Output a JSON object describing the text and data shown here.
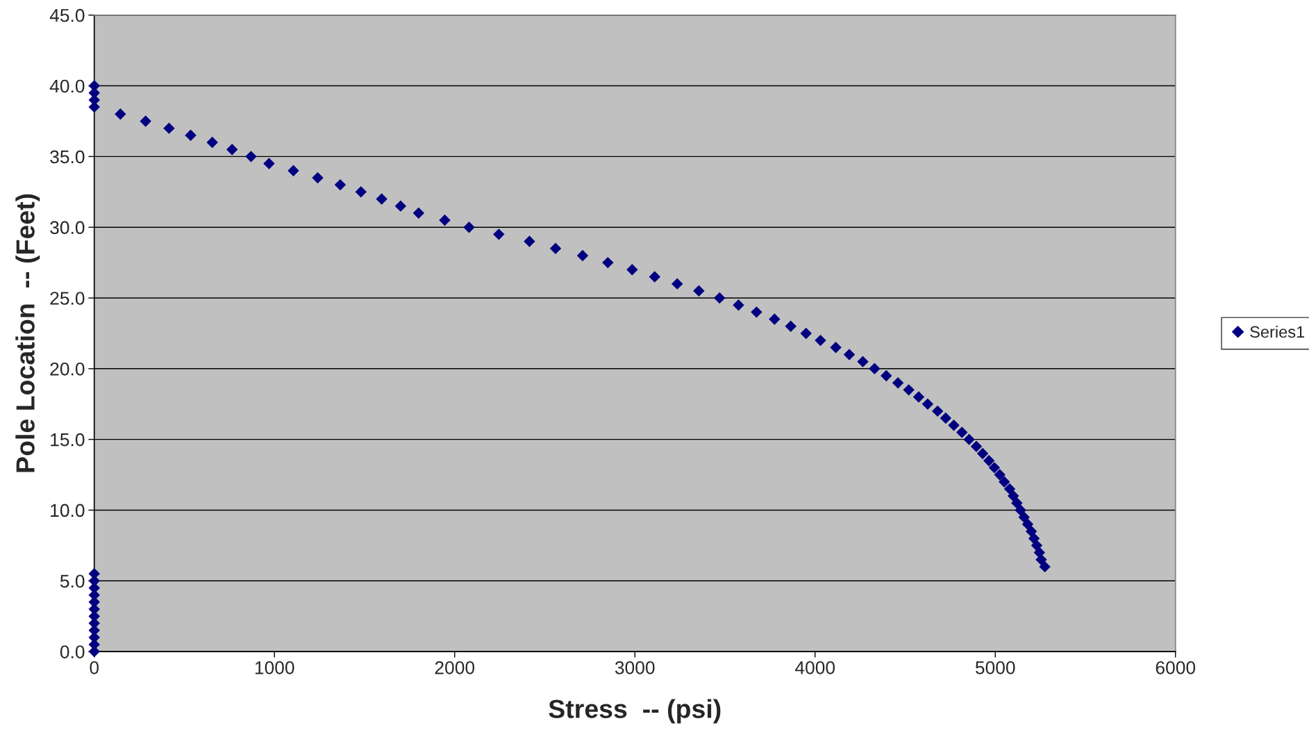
{
  "chart_data": {
    "type": "scatter",
    "xlabel": "Stress  -- (psi)",
    "ylabel": "Pole Location  -- (Feet)",
    "series": [
      {
        "name": "Series1",
        "color": "#000080",
        "x": [
          0,
          0,
          0,
          0,
          0,
          0,
          0,
          0,
          0,
          0,
          0,
          0,
          5275,
          5255,
          5245,
          5230,
          5215,
          5200,
          5180,
          5160,
          5140,
          5120,
          5100,
          5080,
          5050,
          5025,
          4995,
          4965,
          4930,
          4895,
          4855,
          4815,
          4770,
          4725,
          4680,
          4625,
          4575,
          4520,
          4460,
          4395,
          4330,
          4265,
          4190,
          4115,
          4030,
          3950,
          3865,
          3775,
          3675,
          3575,
          3470,
          3355,
          3235,
          3110,
          2985,
          2850,
          2710,
          2560,
          2415,
          2245,
          2080,
          1945,
          1800,
          1700,
          1595,
          1480,
          1365,
          1240,
          1105,
          970,
          870,
          765,
          655,
          535,
          415,
          285,
          145,
          0,
          0,
          0,
          0
        ],
        "values": [
          0,
          0.5,
          1,
          1.5,
          2,
          2.5,
          3,
          3.5,
          4,
          4.5,
          5,
          5.5,
          6,
          6.5,
          7,
          7.5,
          8,
          8.5,
          9,
          9.5,
          10,
          10.5,
          11,
          11.5,
          12,
          12.5,
          13,
          13.5,
          14,
          14.5,
          15,
          15.5,
          16,
          16.5,
          17,
          17.5,
          18,
          18.5,
          19,
          19.5,
          20,
          20.5,
          21,
          21.5,
          22,
          22.5,
          23,
          23.5,
          24,
          24.5,
          25,
          25.5,
          26,
          26.5,
          27,
          27.5,
          28,
          28.5,
          29,
          29.5,
          30,
          30.5,
          31,
          31.5,
          32,
          32.5,
          33,
          33.5,
          34,
          34.5,
          35,
          35.5,
          36,
          36.5,
          37,
          37.5,
          38,
          38.5,
          39,
          39.5,
          40
        ]
      }
    ],
    "xlim": [
      0,
      6000
    ],
    "xticks": [
      0,
      1000,
      2000,
      3000,
      4000,
      5000,
      6000
    ],
    "ylim": [
      0,
      45
    ],
    "yticks": [
      {
        "value": 0,
        "label": "0.0"
      },
      {
        "value": 5,
        "label": "5.0"
      },
      {
        "value": 10,
        "label": "10.0"
      },
      {
        "value": 15,
        "label": "15.0"
      },
      {
        "value": 20,
        "label": "20.0"
      },
      {
        "value": 25,
        "label": "25.0"
      },
      {
        "value": 30,
        "label": "30.0"
      },
      {
        "value": 35,
        "label": "35.0"
      },
      {
        "value": 40,
        "label": "40.0"
      },
      {
        "value": 45,
        "label": "45.0"
      }
    ],
    "grid": "y",
    "legend": "right",
    "marker": "diamond"
  }
}
